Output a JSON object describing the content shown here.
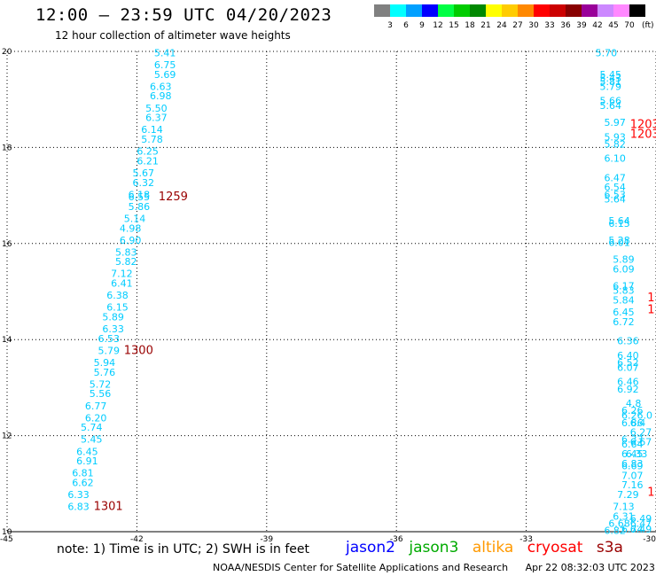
{
  "header": {
    "title": "12:00 – 23:59 UTC 04/20/2023",
    "subtitle": "12 hour collection of altimeter wave heights"
  },
  "legend": {
    "unit": "(ft)",
    "bins": [
      {
        "label": "3",
        "color": "#808080"
      },
      {
        "label": "6",
        "color": "#00ffff"
      },
      {
        "label": "9",
        "color": "#00a0ff"
      },
      {
        "label": "12",
        "color": "#0000ff"
      },
      {
        "label": "15",
        "color": "#00ff44"
      },
      {
        "label": "18",
        "color": "#00cc00"
      },
      {
        "label": "21",
        "color": "#008800"
      },
      {
        "label": "24",
        "color": "#ffff00"
      },
      {
        "label": "27",
        "color": "#ffcc00"
      },
      {
        "label": "30",
        "color": "#ff8800"
      },
      {
        "label": "33",
        "color": "#ff0000"
      },
      {
        "label": "36",
        "color": "#cc0000"
      },
      {
        "label": "39",
        "color": "#880000"
      },
      {
        "label": "42",
        "color": "#990099"
      },
      {
        "label": "45",
        "color": "#cc88ff"
      },
      {
        "label": "70",
        "color": "#ff88ff"
      },
      {
        "label": "",
        "color": "#000000"
      }
    ]
  },
  "footer": {
    "note": "note: 1) Time is in UTC; 2) SWH is in feet",
    "satellites": [
      {
        "name": "jason2",
        "color": "#0000ff"
      },
      {
        "name": "jason3",
        "color": "#00aa00"
      },
      {
        "name": "altika",
        "color": "#ff9900"
      },
      {
        "name": "cryosat",
        "color": "#ff0000"
      },
      {
        "name": "s3a",
        "color": "#990000"
      }
    ],
    "credit": "NOAA/NESDIS Center for Satellite Applications and Research",
    "timestamp": "Apr 22 08:32:03 UTC 2023"
  },
  "chart_data": {
    "type": "scatter",
    "title": "12:00 – 23:59 UTC 04/20/2023",
    "xlabel": "",
    "ylabel": "",
    "xlim": [
      -45,
      -30
    ],
    "ylim": [
      10,
      20
    ],
    "x_ticks": [
      "-45",
      "-42",
      "-39",
      "-36",
      "-33",
      "-30"
    ],
    "y_ticks": [
      "10",
      "12",
      "14",
      "16",
      "18",
      "20"
    ],
    "grid": true,
    "track_color": "#00ccff",
    "time_color": "#990000",
    "right_time_color": "#ff0000",
    "left_track": [
      {
        "x": -41.6,
        "y": 19.9,
        "v": "5.41"
      },
      {
        "x": -41.6,
        "y": 19.65,
        "v": "6.75"
      },
      {
        "x": -41.6,
        "y": 19.45,
        "v": "5.69"
      },
      {
        "x": -41.7,
        "y": 19.2,
        "v": "6.63"
      },
      {
        "x": -41.7,
        "y": 19.0,
        "v": "6.98"
      },
      {
        "x": -41.8,
        "y": 18.75,
        "v": "5.50"
      },
      {
        "x": -41.8,
        "y": 18.55,
        "v": "6.37"
      },
      {
        "x": -41.9,
        "y": 18.3,
        "v": "6.14"
      },
      {
        "x": -41.9,
        "y": 18.1,
        "v": "5.78"
      },
      {
        "x": -42.0,
        "y": 17.85,
        "v": "6.25"
      },
      {
        "x": -42.0,
        "y": 17.65,
        "v": "6.21"
      },
      {
        "x": -42.1,
        "y": 17.4,
        "v": "5.67"
      },
      {
        "x": -42.1,
        "y": 17.2,
        "v": "6.32"
      },
      {
        "x": -42.2,
        "y": 16.95,
        "v": "6.18"
      },
      {
        "x": -42.2,
        "y": 16.9,
        "v": "6.55"
      },
      {
        "x": -42.2,
        "y": 16.7,
        "v": "5.86"
      },
      {
        "x": -42.3,
        "y": 16.45,
        "v": "5.14"
      },
      {
        "x": -42.4,
        "y": 16.25,
        "v": "4.98"
      },
      {
        "x": -42.4,
        "y": 16.0,
        "v": "6.90"
      },
      {
        "x": -42.5,
        "y": 15.75,
        "v": "5.83"
      },
      {
        "x": -42.5,
        "y": 15.55,
        "v": "5.82"
      },
      {
        "x": -42.6,
        "y": 15.3,
        "v": "7.12"
      },
      {
        "x": -42.6,
        "y": 15.1,
        "v": "6.41"
      },
      {
        "x": -42.7,
        "y": 14.85,
        "v": "6.38"
      },
      {
        "x": -42.7,
        "y": 14.6,
        "v": "6.15"
      },
      {
        "x": -42.8,
        "y": 14.4,
        "v": "5.89"
      },
      {
        "x": -42.8,
        "y": 14.15,
        "v": "6.33"
      },
      {
        "x": -42.9,
        "y": 13.95,
        "v": "6.53"
      },
      {
        "x": -42.9,
        "y": 13.7,
        "v": "5.79"
      },
      {
        "x": -43.0,
        "y": 13.45,
        "v": "5.94"
      },
      {
        "x": -43.0,
        "y": 13.25,
        "v": "5.76"
      },
      {
        "x": -43.1,
        "y": 13.0,
        "v": "5.72"
      },
      {
        "x": -43.1,
        "y": 12.8,
        "v": "5.56"
      },
      {
        "x": -43.2,
        "y": 12.55,
        "v": "6.77"
      },
      {
        "x": -43.2,
        "y": 12.3,
        "v": "6.20"
      },
      {
        "x": -43.3,
        "y": 12.1,
        "v": "5.74"
      },
      {
        "x": -43.3,
        "y": 11.85,
        "v": "5.45"
      },
      {
        "x": -43.4,
        "y": 11.6,
        "v": "6.45"
      },
      {
        "x": -43.4,
        "y": 11.4,
        "v": "6.91"
      },
      {
        "x": -43.5,
        "y": 11.15,
        "v": "6.81"
      },
      {
        "x": -43.5,
        "y": 10.95,
        "v": "6.62"
      },
      {
        "x": -43.6,
        "y": 10.7,
        "v": "6.33"
      },
      {
        "x": -43.6,
        "y": 10.45,
        "v": "6.83"
      }
    ],
    "left_times": [
      {
        "x": -41.5,
        "y": 16.9,
        "v": "1259"
      },
      {
        "x": -42.3,
        "y": 13.7,
        "v": "1300"
      },
      {
        "x": -43.0,
        "y": 10.45,
        "v": "1301"
      }
    ],
    "right_track": [
      {
        "x": -31.4,
        "y": 19.9,
        "v": "5.70"
      },
      {
        "x": -31.3,
        "y": 19.45,
        "v": "5.45"
      },
      {
        "x": -31.3,
        "y": 19.37,
        "v": "5.43"
      },
      {
        "x": -31.3,
        "y": 19.3,
        "v": "5.81"
      },
      {
        "x": -31.3,
        "y": 19.2,
        "v": "5.79"
      },
      {
        "x": -31.3,
        "y": 18.9,
        "v": "5.66"
      },
      {
        "x": -31.3,
        "y": 18.8,
        "v": "5.64"
      },
      {
        "x": -31.2,
        "y": 18.45,
        "v": "5.97"
      },
      {
        "x": -31.2,
        "y": 18.15,
        "v": "5.93"
      },
      {
        "x": -31.2,
        "y": 18.0,
        "v": "5.82"
      },
      {
        "x": -31.2,
        "y": 17.7,
        "v": "6.10"
      },
      {
        "x": -31.2,
        "y": 17.3,
        "v": "6.47"
      },
      {
        "x": -31.2,
        "y": 17.1,
        "v": "6.54"
      },
      {
        "x": -31.2,
        "y": 16.95,
        "v": "6.53"
      },
      {
        "x": -31.2,
        "y": 16.85,
        "v": "5.64"
      },
      {
        "x": -31.1,
        "y": 16.4,
        "v": "5.64"
      },
      {
        "x": -31.1,
        "y": 16.35,
        "v": "6.15"
      },
      {
        "x": -31.1,
        "y": 16.0,
        "v": "5.28"
      },
      {
        "x": -31.1,
        "y": 15.95,
        "v": "6.01"
      },
      {
        "x": -31.0,
        "y": 15.6,
        "v": "5.89"
      },
      {
        "x": -31.0,
        "y": 15.4,
        "v": "6.09"
      },
      {
        "x": -31.0,
        "y": 15.05,
        "v": "6.17"
      },
      {
        "x": -31.0,
        "y": 14.95,
        "v": "5.83"
      },
      {
        "x": -31.0,
        "y": 14.75,
        "v": "5.84"
      },
      {
        "x": -31.0,
        "y": 14.5,
        "v": "6.45"
      },
      {
        "x": -31.0,
        "y": 14.3,
        "v": "6.72"
      },
      {
        "x": -30.9,
        "y": 13.9,
        "v": "6.36"
      },
      {
        "x": -30.9,
        "y": 13.6,
        "v": "6.40"
      },
      {
        "x": -30.9,
        "y": 13.45,
        "v": "6.52"
      },
      {
        "x": -30.9,
        "y": 13.35,
        "v": "6.07"
      },
      {
        "x": -30.9,
        "y": 13.05,
        "v": "6.46"
      },
      {
        "x": -30.9,
        "y": 12.9,
        "v": "6.92"
      },
      {
        "x": -30.7,
        "y": 12.6,
        "v": "4.8"
      },
      {
        "x": -30.8,
        "y": 12.45,
        "v": "6.26"
      },
      {
        "x": -30.8,
        "y": 12.35,
        "v": "6.26.0"
      },
      {
        "x": -30.8,
        "y": 12.2,
        "v": "6.86"
      },
      {
        "x": -30.6,
        "y": 12.2,
        "v": "6.4"
      },
      {
        "x": -30.6,
        "y": 12.0,
        "v": "6.27"
      },
      {
        "x": -30.8,
        "y": 11.85,
        "v": "6.33"
      },
      {
        "x": -30.8,
        "y": 11.75,
        "v": "6.64"
      },
      {
        "x": -30.6,
        "y": 11.8,
        "v": "6.67"
      },
      {
        "x": -30.8,
        "y": 11.55,
        "v": "6.45"
      },
      {
        "x": -30.7,
        "y": 11.55,
        "v": "6.33"
      },
      {
        "x": -30.8,
        "y": 11.35,
        "v": "6.83"
      },
      {
        "x": -30.8,
        "y": 11.3,
        "v": "6.69"
      },
      {
        "x": -30.8,
        "y": 11.1,
        "v": "7.07"
      },
      {
        "x": -30.8,
        "y": 10.9,
        "v": "7.16"
      },
      {
        "x": -30.9,
        "y": 10.7,
        "v": "7.29"
      },
      {
        "x": -31.0,
        "y": 10.45,
        "v": "7.13"
      },
      {
        "x": -31.0,
        "y": 10.25,
        "v": "6.31"
      },
      {
        "x": -30.6,
        "y": 10.2,
        "v": "6.49"
      },
      {
        "x": -30.6,
        "y": 10.1,
        "v": "6.47"
      },
      {
        "x": -31.1,
        "y": 10.1,
        "v": "6.68"
      },
      {
        "x": -30.8,
        "y": 9.98,
        "v": "6.74"
      },
      {
        "x": -30.6,
        "y": 9.98,
        "v": "6.49"
      },
      {
        "x": -31.2,
        "y": 9.95,
        "v": "6.82"
      }
    ],
    "right_times": [
      {
        "x": -30.6,
        "y": 18.4,
        "v": "1203"
      },
      {
        "x": -30.6,
        "y": 18.2,
        "v": "1203"
      },
      {
        "x": -30.2,
        "y": 14.8,
        "v": "1"
      },
      {
        "x": -30.2,
        "y": 14.55,
        "v": "1"
      },
      {
        "x": -30.2,
        "y": 10.75,
        "v": "1"
      }
    ]
  }
}
